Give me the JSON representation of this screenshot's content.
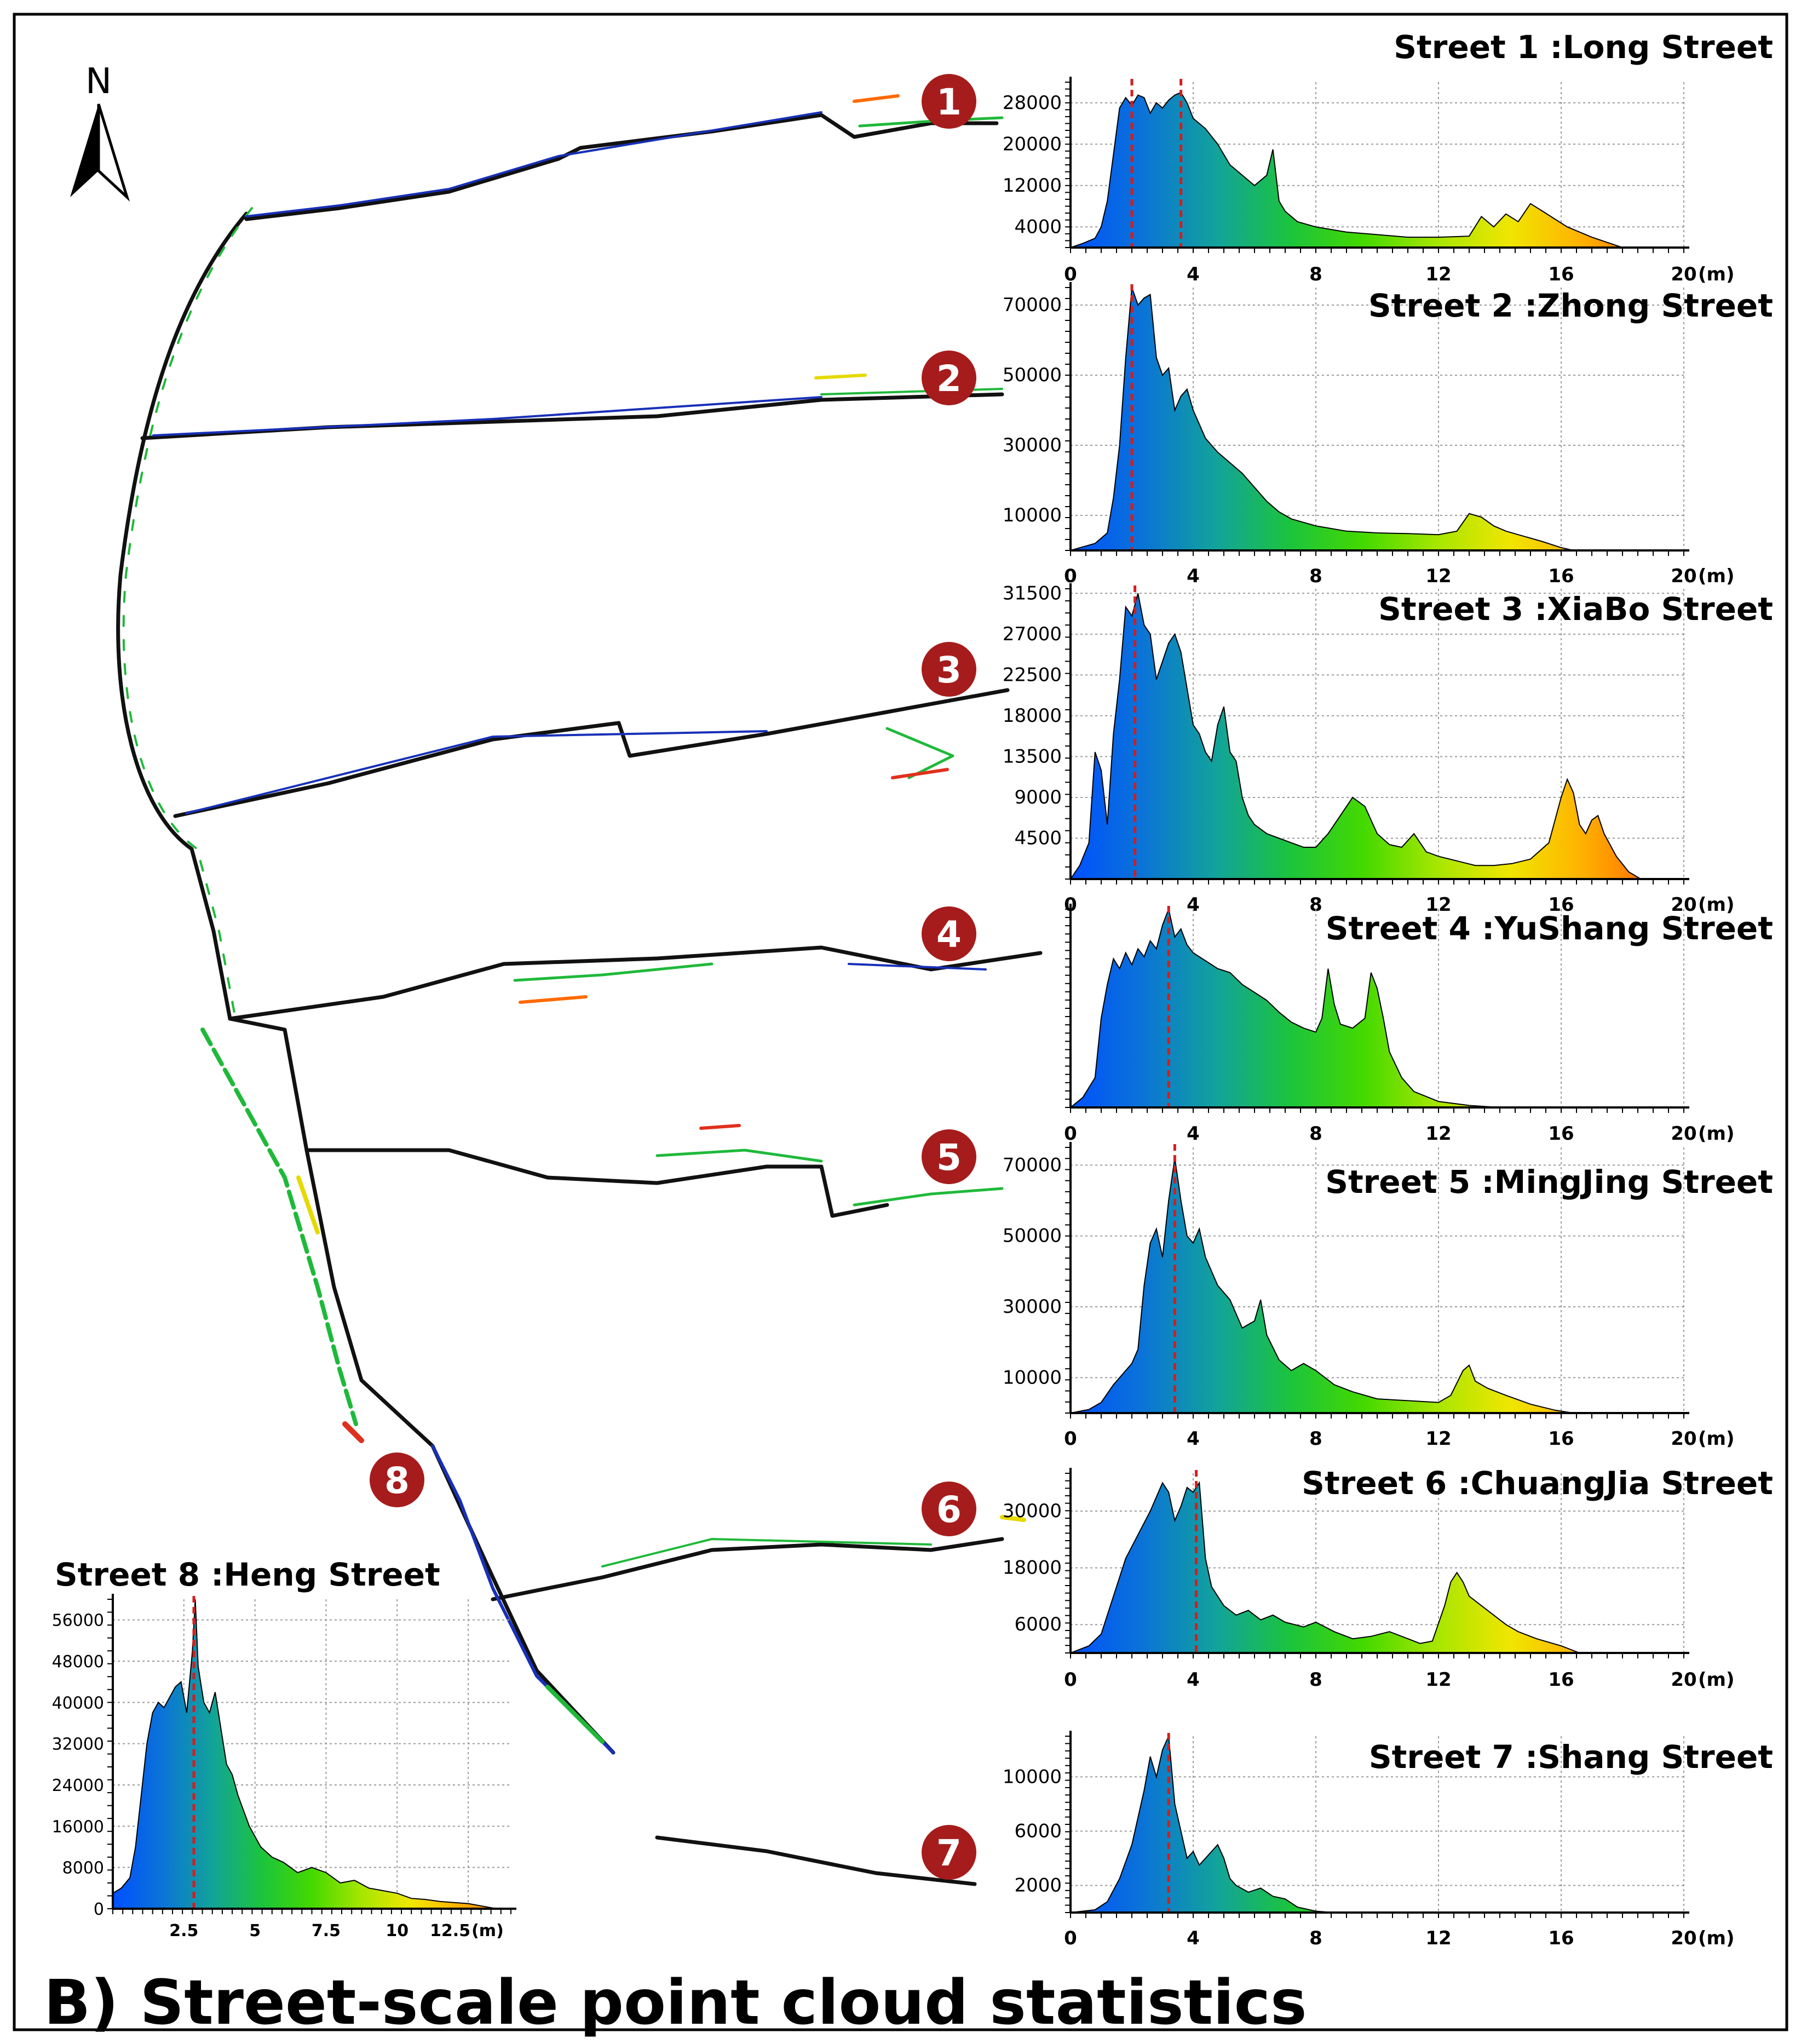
{
  "figure": {
    "caption": "B) Street-scale point cloud statistics",
    "north_label": "N",
    "map_markers": [
      "1",
      "2",
      "3",
      "4",
      "5",
      "6",
      "7",
      "8"
    ]
  },
  "colors": {
    "frame": "#000000",
    "marker_fill": "#a61c1c",
    "mode_line": "#d21e1e",
    "gradient_stops": [
      "#0050ff",
      "#0b74d6",
      "#12a39a",
      "#1cc43c",
      "#44d900",
      "#a6e600",
      "#f0e600",
      "#ffb000",
      "#ff6a00"
    ]
  },
  "chart_data": [
    {
      "type": "area",
      "title": "Street 1 :Long Street",
      "x_unit": "(m)",
      "xlim": [
        0,
        20
      ],
      "x_ticks": [
        0,
        4,
        8,
        12,
        16,
        20
      ],
      "ylim": [
        0,
        32000
      ],
      "y_ticks": [
        4000,
        12000,
        20000,
        28000
      ],
      "mode_lines": [
        2.0,
        3.6
      ],
      "x": [
        0,
        0.4,
        0.8,
        1.0,
        1.2,
        1.4,
        1.6,
        1.8,
        2.0,
        2.2,
        2.4,
        2.6,
        2.8,
        3.0,
        3.2,
        3.4,
        3.6,
        3.8,
        4.0,
        4.4,
        4.8,
        5.2,
        5.6,
        6.0,
        6.4,
        6.6,
        6.8,
        7.0,
        7.4,
        8.0,
        9.0,
        10,
        11,
        12,
        13,
        13.4,
        13.8,
        14.2,
        14.6,
        15.0,
        15.4,
        15.8,
        16.2,
        16.6,
        17.0,
        17.6,
        18.0
      ],
      "y": [
        0,
        800,
        1800,
        4000,
        9000,
        18000,
        27000,
        29000,
        27500,
        29500,
        29000,
        26000,
        28000,
        27000,
        28500,
        29500,
        30000,
        28000,
        25000,
        23000,
        20000,
        16000,
        14000,
        12000,
        14000,
        19000,
        9000,
        7000,
        5000,
        4000,
        3000,
        2500,
        2000,
        2000,
        2200,
        6000,
        4000,
        6500,
        5000,
        8500,
        7000,
        5500,
        4000,
        3000,
        2000,
        800,
        0
      ]
    },
    {
      "type": "area",
      "title": "Street 2 :Zhong Street",
      "x_unit": "(m)",
      "xlim": [
        0,
        20
      ],
      "x_ticks": [
        0,
        4,
        8,
        12,
        16,
        20
      ],
      "ylim": [
        0,
        75000
      ],
      "y_ticks": [
        10000,
        30000,
        50000,
        70000
      ],
      "mode_lines": [
        2.0
      ],
      "x": [
        0,
        0.4,
        0.8,
        1.2,
        1.4,
        1.6,
        1.8,
        2.0,
        2.2,
        2.4,
        2.6,
        2.8,
        3.0,
        3.2,
        3.4,
        3.6,
        3.8,
        4.0,
        4.4,
        4.8,
        5.2,
        5.6,
        6.0,
        6.4,
        6.8,
        7.2,
        8.0,
        9.0,
        10,
        11,
        12,
        12.6,
        13.0,
        13.4,
        13.8,
        14.2,
        14.8,
        15.4,
        16.0,
        16.4
      ],
      "y": [
        0,
        1000,
        2000,
        5000,
        15000,
        30000,
        55000,
        75000,
        70000,
        72000,
        73000,
        55000,
        50000,
        52000,
        40000,
        44000,
        46000,
        40000,
        32000,
        28000,
        25000,
        22000,
        18000,
        14000,
        11000,
        9000,
        7000,
        5500,
        5000,
        4800,
        4500,
        5500,
        10500,
        9500,
        7000,
        5500,
        4000,
        2500,
        800,
        0
      ]
    },
    {
      "type": "area",
      "title": "Street 3 :XiaBo Street",
      "x_unit": "(m)",
      "xlim": [
        0,
        20
      ],
      "x_ticks": [
        0,
        4,
        8,
        12,
        16,
        20
      ],
      "ylim": [
        0,
        32000
      ],
      "y_ticks": [
        4500,
        9000,
        13500,
        18000,
        22500,
        27000,
        31500
      ],
      "mode_lines": [
        2.1
      ],
      "x": [
        0,
        0.3,
        0.6,
        0.8,
        1.0,
        1.2,
        1.4,
        1.6,
        1.8,
        2.0,
        2.2,
        2.4,
        2.6,
        2.8,
        3.0,
        3.2,
        3.4,
        3.6,
        3.8,
        4.0,
        4.2,
        4.4,
        4.6,
        4.8,
        5.0,
        5.2,
        5.4,
        5.6,
        5.8,
        6.0,
        6.4,
        6.8,
        7.2,
        7.6,
        8.0,
        8.4,
        8.8,
        9.2,
        9.6,
        10.0,
        10.4,
        10.8,
        11.2,
        11.6,
        12.0,
        12.6,
        13.2,
        13.8,
        14.4,
        15.0,
        15.6,
        16.0,
        16.2,
        16.4,
        16.6,
        16.8,
        17.0,
        17.2,
        17.4,
        17.8,
        18.2,
        18.6
      ],
      "y": [
        0,
        1500,
        4000,
        14000,
        12000,
        6000,
        16000,
        22000,
        30000,
        29000,
        31500,
        28000,
        27000,
        22000,
        24000,
        26000,
        27000,
        25000,
        21000,
        17000,
        16000,
        14000,
        13000,
        17000,
        19000,
        14000,
        13000,
        9000,
        7000,
        6000,
        5000,
        4500,
        4000,
        3500,
        3500,
        5000,
        7000,
        9000,
        8000,
        5000,
        3800,
        3500,
        5000,
        3000,
        2500,
        2000,
        1500,
        1500,
        1700,
        2200,
        4000,
        9000,
        11000,
        9500,
        6000,
        5000,
        6500,
        7000,
        5000,
        2500,
        800,
        0
      ]
    },
    {
      "type": "area",
      "title": "Street 4 :YuShang Street",
      "x_unit": "(m)",
      "xlim": [
        0,
        20
      ],
      "x_ticks": [
        0,
        4,
        8,
        12,
        16,
        20
      ],
      "ylim": [
        0,
        100
      ],
      "y_ticks": [],
      "mode_lines": [
        3.2
      ],
      "x": [
        0,
        0.4,
        0.8,
        1.0,
        1.2,
        1.4,
        1.6,
        1.8,
        2.0,
        2.2,
        2.4,
        2.6,
        2.8,
        3.0,
        3.2,
        3.4,
        3.6,
        3.8,
        4.0,
        4.4,
        4.8,
        5.2,
        5.6,
        6.0,
        6.4,
        6.8,
        7.2,
        7.6,
        8.0,
        8.2,
        8.4,
        8.6,
        8.8,
        9.2,
        9.6,
        9.8,
        10.0,
        10.2,
        10.4,
        10.8,
        11.2,
        12.0,
        13.0,
        14.0
      ],
      "y": [
        0,
        5,
        15,
        45,
        62,
        75,
        70,
        78,
        72,
        80,
        76,
        84,
        80,
        92,
        100,
        86,
        90,
        82,
        78,
        74,
        70,
        68,
        62,
        58,
        54,
        48,
        43,
        40,
        38,
        45,
        70,
        52,
        42,
        40,
        45,
        68,
        60,
        45,
        28,
        15,
        8,
        3,
        1,
        0
      ]
    },
    {
      "type": "area",
      "title": "Street 5 :MingJing Street",
      "x_unit": "(m)",
      "xlim": [
        0,
        20
      ],
      "x_ticks": [
        0,
        4,
        8,
        12,
        16,
        20
      ],
      "ylim": [
        0,
        75000
      ],
      "y_ticks": [
        10000,
        30000,
        50000,
        70000
      ],
      "mode_lines": [
        3.4
      ],
      "x": [
        0,
        0.6,
        1.0,
        1.4,
        1.8,
        2.0,
        2.2,
        2.4,
        2.6,
        2.8,
        3.0,
        3.2,
        3.4,
        3.6,
        3.8,
        4.0,
        4.2,
        4.4,
        4.8,
        5.2,
        5.6,
        6.0,
        6.2,
        6.4,
        6.8,
        7.2,
        7.6,
        8.0,
        8.6,
        9.2,
        10,
        11,
        12,
        12.4,
        12.8,
        13.0,
        13.2,
        13.6,
        14.2,
        15.0,
        15.8,
        16.4
      ],
      "y": [
        0,
        1000,
        3000,
        8000,
        12000,
        14000,
        18000,
        36000,
        48000,
        52000,
        44000,
        60000,
        72000,
        60000,
        50000,
        48000,
        52000,
        44000,
        36000,
        32000,
        24000,
        26000,
        32000,
        22000,
        15000,
        12000,
        14000,
        12000,
        8000,
        6000,
        4000,
        3500,
        3000,
        5000,
        12000,
        13500,
        9000,
        7000,
        5000,
        2500,
        800,
        0
      ]
    },
    {
      "type": "area",
      "title": "Street 6 :ChuangJia Street",
      "x_unit": "(m)",
      "xlim": [
        0,
        20
      ],
      "x_ticks": [
        0,
        4,
        8,
        12,
        16,
        20
      ],
      "ylim": [
        0,
        38000
      ],
      "y_ticks": [
        6000,
        18000,
        30000
      ],
      "mode_lines": [
        4.1
      ],
      "x": [
        0,
        0.6,
        1.0,
        1.4,
        1.8,
        2.2,
        2.6,
        3.0,
        3.2,
        3.4,
        3.6,
        3.8,
        4.0,
        4.2,
        4.4,
        4.6,
        5.0,
        5.4,
        5.8,
        6.2,
        6.6,
        7.0,
        7.6,
        8.0,
        8.6,
        9.2,
        9.8,
        10.4,
        11.0,
        11.4,
        11.8,
        12.2,
        12.4,
        12.6,
        12.8,
        13.0,
        13.4,
        13.8,
        14.2,
        14.6,
        15.2,
        16.0,
        16.6
      ],
      "y": [
        0,
        1500,
        4000,
        12000,
        20000,
        25000,
        30000,
        36000,
        34000,
        28000,
        31000,
        35000,
        34000,
        36000,
        20000,
        14000,
        10000,
        8000,
        9000,
        7000,
        8000,
        6500,
        5500,
        6500,
        4500,
        3000,
        3500,
        4500,
        3000,
        2000,
        2500,
        10000,
        15000,
        17000,
        15000,
        12000,
        10000,
        8000,
        6000,
        4500,
        3000,
        1500,
        0
      ]
    },
    {
      "type": "area",
      "title": "Street 7 :Shang Street",
      "x_unit": "(m)",
      "xlim": [
        0,
        20
      ],
      "x_ticks": [
        0,
        4,
        8,
        12,
        16,
        20
      ],
      "ylim": [
        0,
        13000
      ],
      "y_ticks": [
        2000,
        6000,
        10000
      ],
      "mode_lines": [
        3.2
      ],
      "x": [
        0,
        0.8,
        1.2,
        1.6,
        2.0,
        2.4,
        2.6,
        2.8,
        3.0,
        3.2,
        3.4,
        3.6,
        3.8,
        4.0,
        4.2,
        4.4,
        4.6,
        4.8,
        5.0,
        5.2,
        5.4,
        5.8,
        6.2,
        6.6,
        7.0,
        7.4,
        8.0,
        8.6
      ],
      "y": [
        0,
        200,
        800,
        2500,
        5000,
        9000,
        11500,
        10000,
        12000,
        13000,
        8000,
        6000,
        4000,
        4500,
        3500,
        4000,
        4500,
        5000,
        4000,
        2500,
        2000,
        1500,
        1800,
        1200,
        1000,
        400,
        100,
        0
      ]
    },
    {
      "type": "area",
      "title": "Street 8 :Heng Street",
      "x_unit": "(m)",
      "xlim": [
        0,
        14
      ],
      "x_ticks": [
        2.5,
        5,
        7.5,
        10,
        12.5
      ],
      "ylim": [
        0,
        60000
      ],
      "y_ticks": [
        0,
        8000,
        16000,
        24000,
        32000,
        40000,
        48000,
        56000
      ],
      "mode_lines": [
        2.85
      ],
      "x": [
        0,
        0.3,
        0.6,
        0.8,
        1.0,
        1.2,
        1.4,
        1.6,
        1.8,
        2.0,
        2.2,
        2.4,
        2.6,
        2.8,
        2.9,
        3.0,
        3.2,
        3.4,
        3.6,
        3.8,
        4.0,
        4.2,
        4.4,
        4.8,
        5.2,
        5.6,
        6.0,
        6.5,
        7.0,
        7.5,
        8.0,
        8.5,
        9.0,
        9.5,
        10.0,
        10.5,
        11.0,
        11.5,
        12.0,
        12.5,
        13.0,
        13.5
      ],
      "y": [
        3000,
        4000,
        6000,
        12000,
        22000,
        32000,
        38000,
        40000,
        39000,
        41000,
        43000,
        44000,
        38000,
        50000,
        60000,
        47000,
        40000,
        38000,
        42000,
        35000,
        28000,
        26000,
        22000,
        16000,
        12000,
        10000,
        9000,
        7000,
        8000,
        7000,
        5000,
        5500,
        4000,
        3500,
        3000,
        2000,
        1800,
        1400,
        1200,
        1000,
        500,
        0
      ]
    }
  ]
}
